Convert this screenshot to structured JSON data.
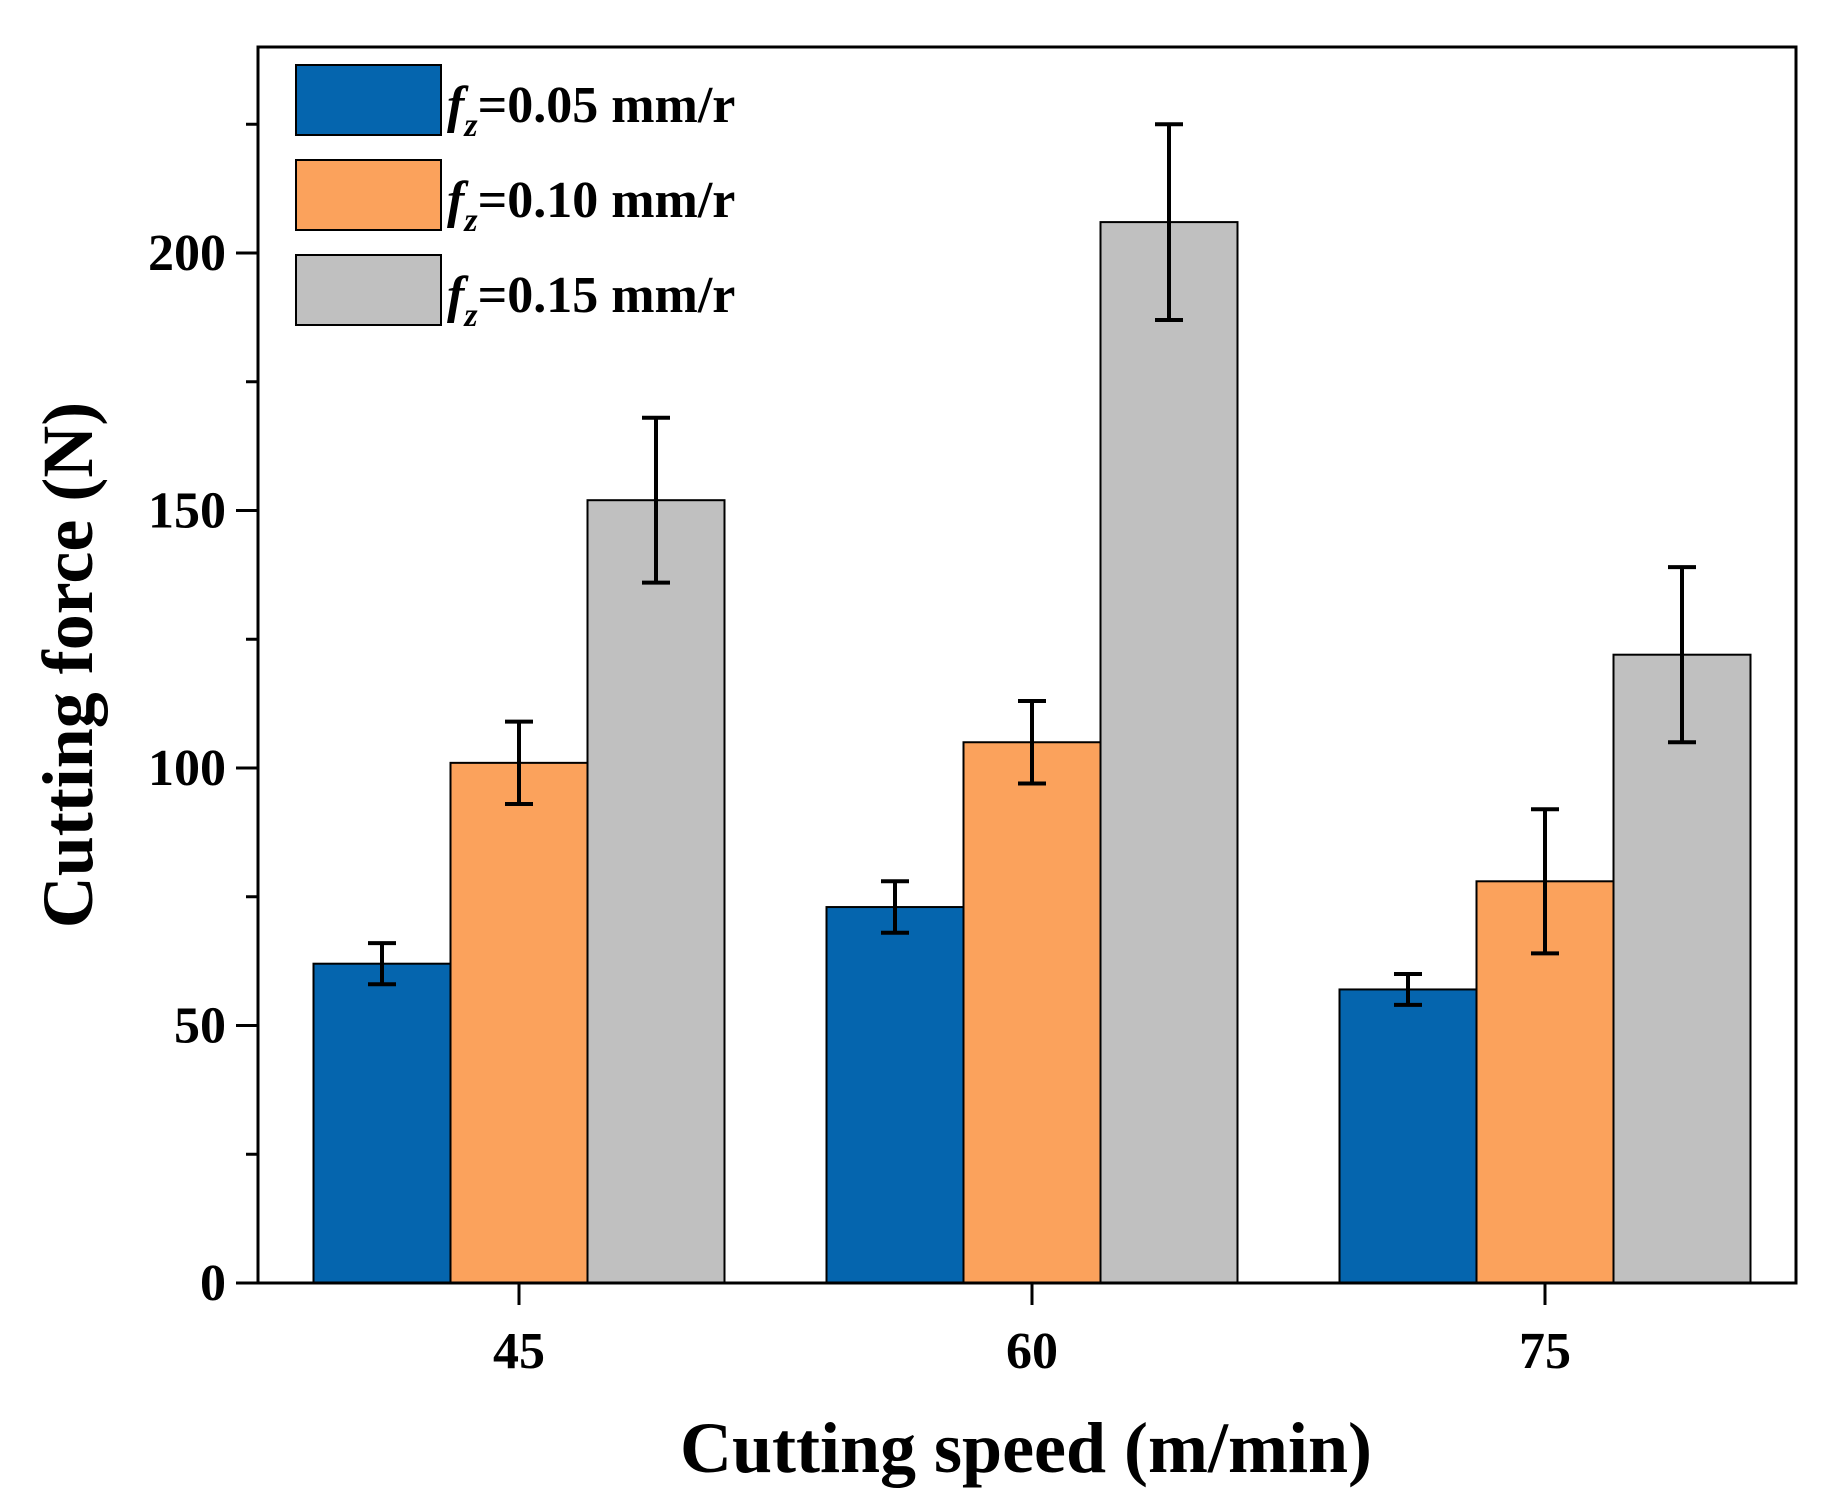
{
  "chart_data": {
    "type": "bar",
    "title": "",
    "xlabel": "Cutting speed (m/min)",
    "ylabel": "Cutting force (N)",
    "categories": [
      "45",
      "60",
      "75"
    ],
    "ylim": [
      0,
      240
    ],
    "yticks": [
      0,
      50,
      100,
      150,
      200
    ],
    "y_minor_step": 25,
    "grid": false,
    "legend_position": "top-left",
    "series": [
      {
        "name": "fz=0.05 mm/r",
        "legend_var": "f",
        "legend_sub": "z",
        "legend_rest": "=0.05 mm/r",
        "color": "#0565AE",
        "values": [
          62,
          73,
          57
        ],
        "errors": [
          4,
          5,
          3
        ]
      },
      {
        "name": "fz=0.10 mm/r",
        "legend_var": "f",
        "legend_sub": "z",
        "legend_rest": "=0.10 mm/r",
        "color": "#FBA25C",
        "values": [
          101,
          105,
          78
        ],
        "errors": [
          8,
          8,
          14
        ]
      },
      {
        "name": "fz=0.15 mm/r",
        "legend_var": "f",
        "legend_sub": "z",
        "legend_rest": "=0.15 mm/r",
        "color": "#C0C0C0",
        "values": [
          152,
          206,
          122
        ],
        "errors": [
          16,
          19,
          17
        ]
      }
    ]
  }
}
